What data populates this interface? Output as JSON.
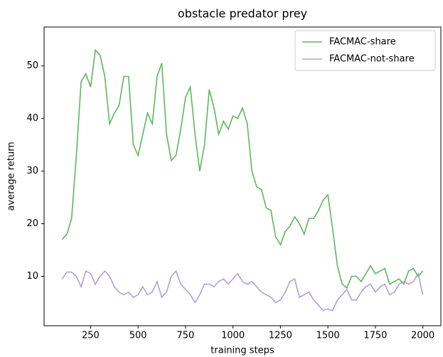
{
  "chart_data": {
    "type": "line",
    "title": "obstacle predator prey",
    "xlabel": "training steps",
    "ylabel": "average return",
    "x": [
      100,
      125,
      150,
      175,
      200,
      225,
      250,
      275,
      300,
      325,
      350,
      375,
      400,
      425,
      450,
      475,
      500,
      525,
      550,
      575,
      600,
      625,
      650,
      675,
      700,
      725,
      750,
      775,
      800,
      825,
      850,
      875,
      900,
      925,
      950,
      975,
      1000,
      1025,
      1050,
      1075,
      1100,
      1125,
      1150,
      1175,
      1200,
      1225,
      1250,
      1275,
      1300,
      1325,
      1350,
      1375,
      1400,
      1425,
      1450,
      1475,
      1500,
      1525,
      1550,
      1575,
      1600,
      1625,
      1650,
      1675,
      1700,
      1725,
      1750,
      1775,
      1800,
      1825,
      1850,
      1875,
      1900,
      1925,
      1950,
      1975,
      2000
    ],
    "series": [
      {
        "name": "FACMAC-share",
        "color": "#5cb85c",
        "values": [
          17,
          18,
          21,
          33,
          47,
          48.5,
          46,
          53,
          52,
          48,
          39,
          41,
          42.5,
          48,
          48,
          35,
          33,
          37,
          41,
          39,
          48,
          50.5,
          37,
          32,
          33,
          38,
          44,
          46,
          37,
          30,
          35,
          45.5,
          42,
          37,
          39.5,
          38,
          40.5,
          40,
          42,
          39,
          30,
          27,
          26.5,
          23,
          22.5,
          17.5,
          16,
          18.5,
          19.5,
          21.3,
          20,
          18,
          21,
          21,
          22.5,
          24.5,
          25.5,
          19,
          12,
          8.5,
          7.8,
          10,
          10,
          9,
          10.5,
          12,
          10.5,
          11,
          11.5,
          8.5,
          9,
          9.5,
          8.5,
          11,
          11.5,
          10,
          11
        ]
      },
      {
        "name": "FACMAC-not-share",
        "color": "#b39ddb",
        "values": [
          9.5,
          10.8,
          10.8,
          10,
          8,
          11,
          10.5,
          8.5,
          10,
          11,
          10,
          8,
          7,
          6.5,
          7,
          6,
          6.5,
          8,
          6.5,
          7,
          9,
          6,
          7,
          10,
          11,
          8.5,
          7.5,
          6.5,
          5,
          6.5,
          8.5,
          8.5,
          8,
          9,
          9.5,
          8.5,
          9.5,
          10.5,
          9,
          8.5,
          9,
          8,
          7,
          6.5,
          6,
          5,
          5.5,
          7,
          9,
          9.5,
          6,
          6.5,
          7,
          5.5,
          4.5,
          3.5,
          3.8,
          3.5,
          5.5,
          6.5,
          7.5,
          5.5,
          5.5,
          7,
          8,
          8.5,
          7,
          8,
          8.5,
          6.5,
          7,
          8.5,
          9,
          8.5,
          9,
          10.5,
          6.5
        ]
      }
    ],
    "xlim": [
      5,
      2095
    ],
    "ylim": [
      0.6,
      57.4
    ],
    "xticks": [
      250,
      500,
      750,
      1000,
      1250,
      1500,
      1750,
      2000
    ],
    "yticks": [
      10,
      20,
      30,
      40,
      50
    ],
    "legend": "upper right"
  }
}
